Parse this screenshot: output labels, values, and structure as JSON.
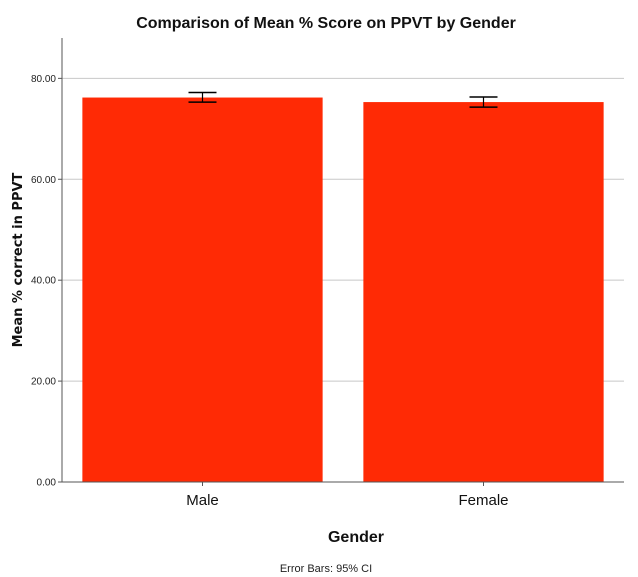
{
  "chart_data": {
    "type": "bar",
    "title": "Comparison of Mean % Score on PPVT by Gender",
    "xlabel": "Gender",
    "ylabel": "Mean % correct in PPVT",
    "categories": [
      "Male",
      "Female"
    ],
    "values": [
      76.2,
      75.3
    ],
    "error_bars": [
      {
        "low": 75.3,
        "high": 77.2
      },
      {
        "low": 74.3,
        "high": 76.3
      }
    ],
    "ylim": [
      0,
      88
    ],
    "yticks": [
      0,
      20,
      40,
      60,
      80
    ],
    "ytick_labels": [
      "0.00",
      "20.00",
      "40.00",
      "60.00",
      "80.00"
    ],
    "grid": true,
    "bar_color": "#ff2a05",
    "footnote": "Error Bars: 95% CI"
  }
}
